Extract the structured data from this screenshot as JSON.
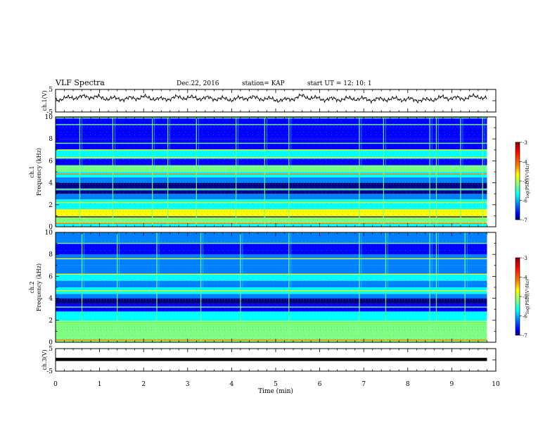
{
  "header": {
    "title": "VLF Spectra",
    "date": "Dec.22, 2016",
    "station": "station= KAP",
    "start_time": "start  UT =   12: 10: 1"
  },
  "colors": {
    "background": "#ffffff",
    "axes": "#000000",
    "colormap": [
      "#00007f",
      "#0000ff",
      "#007fff",
      "#00ffff",
      "#7fff7f",
      "#ffff00",
      "#ff7f00",
      "#ff0000",
      "#7f0000"
    ]
  },
  "chart_data": [
    {
      "id": "ch1-waveform",
      "type": "line",
      "ylabel": "ch.1(V)",
      "yticks": [
        "5",
        "-5"
      ],
      "ylim": [
        -5,
        5
      ],
      "xlim": [
        0,
        10
      ],
      "series": [
        {
          "x": [
            0,
            0.4,
            0.8,
            1.2,
            1.6,
            2.0,
            2.4,
            2.8,
            3.2,
            3.6,
            4.0,
            4.4,
            4.8,
            5.2,
            5.6,
            6.0,
            6.4,
            6.8,
            7.2,
            7.6,
            8.0,
            8.4,
            8.8,
            9.2,
            9.6,
            9.8
          ],
          "values": [
            0.5,
            1.5,
            1.8,
            1.0,
            0.8,
            1.6,
            0.6,
            1.5,
            1.2,
            1.0,
            0.6,
            1.4,
            0.8,
            0.2,
            2.0,
            0.8,
            0.6,
            1.0,
            0.4,
            0.8,
            0.6,
            0.2,
            1.4,
            1.0,
            2.0,
            0.8
          ]
        }
      ]
    },
    {
      "id": "ch1-spectrogram",
      "type": "heatmap",
      "ylabel": "ch.1\nFrequency (kHz)",
      "yticks": [
        "0",
        "2",
        "4",
        "6",
        "8",
        "10"
      ],
      "ylim": [
        0,
        10
      ],
      "xlim": [
        0,
        10
      ],
      "colorbar": {
        "label": "log(PSD)(V²/Hz)",
        "ticks": [
          "-3",
          "-4",
          "-5",
          "-6",
          "-7"
        ],
        "range": [
          -7,
          -3
        ]
      },
      "bands": [
        {
          "f": [
            0,
            0.3
          ],
          "level": -5.5
        },
        {
          "f": [
            0.3,
            1.0
          ],
          "level": -4.8
        },
        {
          "f": [
            1.0,
            1.6
          ],
          "level": -4.5
        },
        {
          "f": [
            1.6,
            2.5
          ],
          "level": -5.3
        },
        {
          "f": [
            2.5,
            3.0
          ],
          "level": -6.0
        },
        {
          "f": [
            3.0,
            3.3
          ],
          "level": -7.0
        },
        {
          "f": [
            3.3,
            3.5
          ],
          "level": -5.8
        },
        {
          "f": [
            3.5,
            4.0
          ],
          "level": -7.0
        },
        {
          "f": [
            4.0,
            4.5
          ],
          "level": -5.8
        },
        {
          "f": [
            4.5,
            5.0
          ],
          "level": -5.3
        },
        {
          "f": [
            5.0,
            5.6
          ],
          "level": -5.0
        },
        {
          "f": [
            5.6,
            6.2
          ],
          "level": -6.3
        },
        {
          "f": [
            6.2,
            7.0
          ],
          "level": -5.4
        },
        {
          "f": [
            7.0,
            8.0
          ],
          "level": -6.4
        },
        {
          "f": [
            8.0,
            9.0
          ],
          "level": -6.6
        },
        {
          "f": [
            9.0,
            10.0
          ],
          "level": -6.4
        }
      ],
      "lines": [
        {
          "f": 0.9,
          "level": -3.1
        },
        {
          "f": 0.3,
          "level": -4.0
        },
        {
          "f": 2.2,
          "level": -4.6
        },
        {
          "f": 3.4,
          "level": -4.8
        },
        {
          "f": 4.8,
          "level": -3.9
        },
        {
          "f": 6.3,
          "level": -4.7
        },
        {
          "f": 7.0,
          "level": -4.5
        },
        {
          "f": 7.6,
          "level": -4.9
        },
        {
          "f": 9.3,
          "level": -5.0
        },
        {
          "f": 9.9,
          "level": -4.8
        }
      ],
      "spikes": [
        0.55,
        1.3,
        2.2,
        2.55,
        3.2,
        4.1,
        4.75,
        5.3,
        6.9,
        7.45,
        8.5,
        8.65,
        9.2,
        9.7
      ]
    },
    {
      "id": "ch2-spectrogram",
      "type": "heatmap",
      "ylabel": "ch.2\nFrequency (kHz)",
      "yticks": [
        "0",
        "2",
        "4",
        "6",
        "8",
        "10"
      ],
      "ylim": [
        0,
        10
      ],
      "xlim": [
        0,
        10
      ],
      "colorbar": {
        "label": "log(PSD)(V²/Hz)",
        "ticks": [
          "-3",
          "-4",
          "-5",
          "-6",
          "-7"
        ],
        "range": [
          -7,
          -3
        ]
      },
      "bands": [
        {
          "f": [
            0,
            0.4
          ],
          "level": -5.0
        },
        {
          "f": [
            0.4,
            1.0
          ],
          "level": -5.2
        },
        {
          "f": [
            1.0,
            1.8
          ],
          "level": -5.0
        },
        {
          "f": [
            1.8,
            2.8
          ],
          "level": -5.6
        },
        {
          "f": [
            2.8,
            3.5
          ],
          "level": -6.4
        },
        {
          "f": [
            3.5,
            4.0
          ],
          "level": -7.0
        },
        {
          "f": [
            4.0,
            4.4
          ],
          "level": -5.8
        },
        {
          "f": [
            4.4,
            5.0
          ],
          "level": -5.3
        },
        {
          "f": [
            5.0,
            5.6
          ],
          "level": -6.2
        },
        {
          "f": [
            5.6,
            6.2
          ],
          "level": -5.3
        },
        {
          "f": [
            6.2,
            7.0
          ],
          "level": -6.2
        },
        {
          "f": [
            7.0,
            8.0
          ],
          "level": -5.8
        },
        {
          "f": [
            8.0,
            9.0
          ],
          "level": -6.4
        },
        {
          "f": [
            9.0,
            10.0
          ],
          "level": -6.2
        }
      ],
      "lines": [
        {
          "f": 0.2,
          "level": -4.2
        },
        {
          "f": 1.9,
          "level": -4.7
        },
        {
          "f": 3.2,
          "level": -5.0
        },
        {
          "f": 4.7,
          "level": -4.6
        },
        {
          "f": 6.2,
          "level": -4.5
        },
        {
          "f": 7.6,
          "level": -4.6
        },
        {
          "f": 9.0,
          "level": -5.0
        }
      ],
      "spikes": [
        0.6,
        1.4,
        2.3,
        3.3,
        4.2,
        5.3,
        6.9,
        7.5,
        8.5,
        8.65,
        9.3
      ]
    },
    {
      "id": "ch3-waveform",
      "type": "line",
      "ylabel": "ch.3(V)",
      "yticks": [
        "5",
        "-5"
      ],
      "ylim": [
        -5,
        5
      ],
      "xlim": [
        0,
        10
      ],
      "series": [
        {
          "x": [
            0,
            9.8
          ],
          "values": [
            0.2,
            0.2
          ]
        }
      ]
    }
  ],
  "xaxis": {
    "label": "Time  (min)",
    "ticks": [
      "0",
      "1",
      "2",
      "3",
      "4",
      "5",
      "6",
      "7",
      "8",
      "9",
      "10"
    ]
  }
}
